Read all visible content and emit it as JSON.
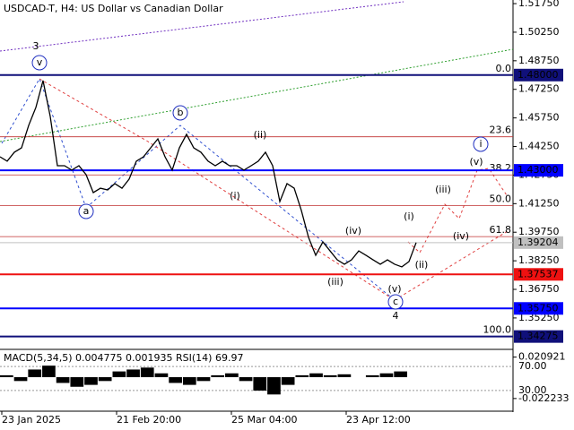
{
  "chart_data": {
    "type": "line",
    "title": "USDCAD-T, H4:  US Dollar vs Canadian Dollar",
    "color": "#000000",
    "values": [
      1.4371,
      1.4348,
      1.4395,
      1.4418,
      1.4536,
      1.463,
      1.4771,
      1.4583,
      1.4324,
      1.4324,
      1.4301,
      1.4324,
      1.4277,
      1.4183,
      1.4206,
      1.4197,
      1.423,
      1.4206,
      1.4254,
      1.4348,
      1.4371,
      1.4418,
      1.4465,
      1.4371,
      1.4301,
      1.4418,
      1.4489,
      1.4418,
      1.4395,
      1.4348,
      1.4324,
      1.4348,
      1.4324,
      1.4324,
      1.4301,
      1.4324,
      1.4348,
      1.4395,
      1.4324,
      1.4136,
      1.423,
      1.4206,
      1.4089,
      1.3948,
      1.3854,
      1.3924,
      1.3877,
      1.383,
      1.3807,
      1.383,
      1.3877,
      1.3854,
      1.383,
      1.3807,
      1.383,
      1.3807,
      1.3793,
      1.3821,
      1.39204
    ],
    "xlim": [
      0,
      71.5
    ],
    "xticks": [
      {
        "value": 0,
        "label": "23 Jan 2025"
      },
      {
        "value": 16,
        "label": "21 Feb 20:00"
      },
      {
        "value": 32,
        "label": "25 Mar 04:00"
      },
      {
        "value": 48,
        "label": "23 Apr 12:00"
      }
    ],
    "ylim": [
      1.336,
      1.5194
    ],
    "yticks": [
      {
        "value": 1.5175,
        "label": "1.51750"
      },
      {
        "value": 1.5025,
        "label": "1.50250"
      },
      {
        "value": 1.4875,
        "label": "1.48750"
      },
      {
        "value": 1.4725,
        "label": "1.47250"
      },
      {
        "value": 1.4575,
        "label": "1.45750"
      },
      {
        "value": 1.4425,
        "label": "1.44250"
      },
      {
        "value": 1.4275,
        "label": "1.42750"
      },
      {
        "value": 1.4125,
        "label": "1.41250"
      },
      {
        "value": 1.3975,
        "label": "1.39750"
      },
      {
        "value": 1.3825,
        "label": "1.38250"
      },
      {
        "value": 1.3675,
        "label": "1.36750"
      },
      {
        "value": 1.3525,
        "label": "1.35250"
      }
    ],
    "levels": [
      {
        "value": 1.48,
        "label": "1.48000",
        "color": "#10107a"
      },
      {
        "value": 1.43,
        "label": "1.43000",
        "color": "#0000ff"
      },
      {
        "value": 1.39204,
        "label": "1.39204",
        "color": "#c0c0c0"
      },
      {
        "value": 1.37537,
        "label": "1.37537",
        "color": "#ee1111"
      },
      {
        "value": 1.3575,
        "label": "1.35750",
        "color": "#0000ff"
      },
      {
        "value": 1.34275,
        "label": "1.34275",
        "color": "#10107a"
      }
    ],
    "fib_levels": [
      {
        "value": 0,
        "label": "0.0",
        "price": 1.48
      },
      {
        "value": 23.6,
        "label": "23.6",
        "price": 1.4476
      },
      {
        "value": 38.2,
        "label": "38.2",
        "price": 1.4276
      },
      {
        "value": 50,
        "label": "50.0",
        "price": 1.4114
      },
      {
        "value": 61.8,
        "label": "61.8",
        "price": 1.3952
      },
      {
        "value": 100,
        "label": "100.0",
        "price": 1.34275
      }
    ],
    "annotations": [
      "3",
      "v",
      "a",
      "b",
      "(ii)",
      "(i)",
      "(iv)",
      "(iii)",
      "(v)",
      "c",
      "4",
      "(i)",
      "(ii)",
      "(iii)",
      "(iv)",
      "(v)",
      "i"
    ],
    "indicator": {
      "title": "MACD(5,34,5) 0.004775 0.001935 RSI(14) 69.97",
      "values": [
        0.002,
        -0.004,
        0.008,
        0.012,
        -0.006,
        -0.01,
        -0.008,
        -0.004,
        0.006,
        0.008,
        0.01,
        0.004,
        -0.006,
        -0.008,
        -0.004,
        0.002,
        0.004,
        -0.004,
        -0.014,
        -0.018,
        -0.008,
        0.002,
        0.004,
        0.002,
        0.003,
        0.0,
        0.002,
        0.004,
        0.006
      ],
      "ylim": [
        -0.0345,
        0.0271
      ],
      "yticks": [
        {
          "value": 0.020921,
          "label": "0.020921"
        },
        {
          "value": -0.022233,
          "label": "-0.022233"
        }
      ],
      "rsi_ylim": [
        0,
        100
      ],
      "rsi_levels": [
        {
          "value": 70,
          "label": "70.00"
        },
        {
          "value": 30,
          "label": "30.00"
        }
      ]
    }
  }
}
